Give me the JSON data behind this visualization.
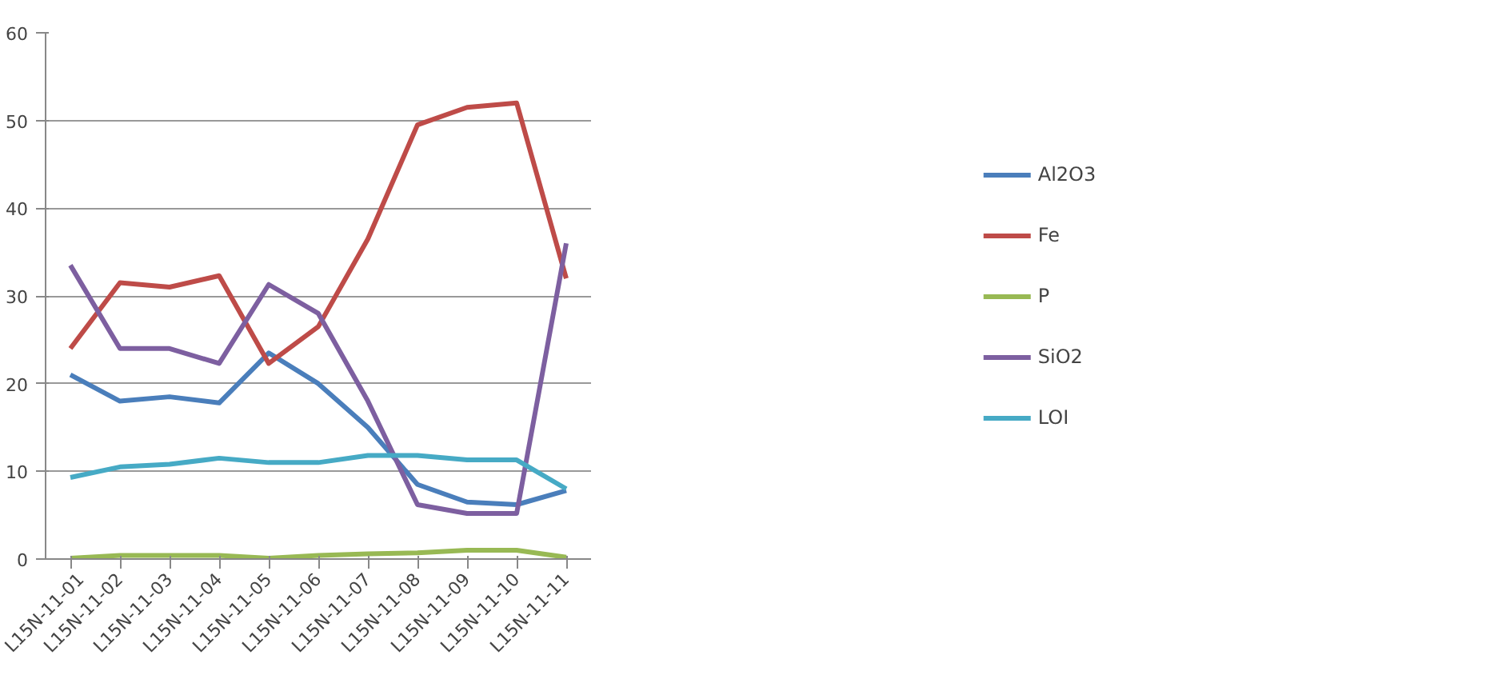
{
  "chart_data": {
    "type": "line",
    "categories": [
      "L15N-11-01",
      "L15N-11-02",
      "L15N-11-03",
      "L15N-11-04",
      "L15N-11-05",
      "L15N-11-06",
      "L15N-11-07",
      "L15N-11-08",
      "L15N-11-09",
      "L15N-11-10",
      "L15N-11-11"
    ],
    "series": [
      {
        "name": "Al2O3",
        "color": "#4a7ebb",
        "values": [
          21,
          18,
          18.5,
          17.8,
          23.5,
          20,
          15,
          8.5,
          6.5,
          6.2,
          7.8
        ]
      },
      {
        "name": "Fe",
        "color": "#be4b48",
        "values": [
          24,
          31.5,
          31,
          32.3,
          22.3,
          26.5,
          36.5,
          49.5,
          51.5,
          52,
          32
        ]
      },
      {
        "name": "P",
        "color": "#98b954",
        "values": [
          0.1,
          0.4,
          0.4,
          0.4,
          0.1,
          0.4,
          0.6,
          0.7,
          1.0,
          1.0,
          0.2
        ]
      },
      {
        "name": "SiO2",
        "color": "#7d5fa0",
        "values": [
          33.5,
          24,
          24,
          22.3,
          31.3,
          28,
          18,
          6.2,
          5.2,
          5.2,
          36
        ]
      },
      {
        "name": "LOI",
        "color": "#46aac5",
        "values": [
          9.3,
          10.5,
          10.8,
          11.5,
          11,
          11,
          11.8,
          11.8,
          11.3,
          11.3,
          8
        ]
      }
    ],
    "ylim": [
      0,
      60
    ],
    "yticks": [
      0,
      10,
      20,
      30,
      40,
      50,
      60
    ],
    "grid": "y",
    "legend": "right",
    "marker": "none",
    "line_style": "solid"
  }
}
